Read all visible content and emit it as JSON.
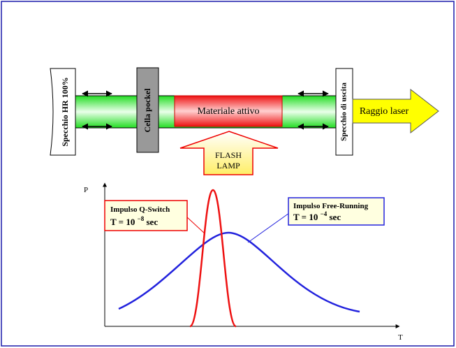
{
  "resonator": {
    "rear_mirror": "Specchio HR 100%",
    "pockels_cell": "Cella pockel",
    "active_medium": "Materiale attivo",
    "flash_lamp": [
      "FLASH",
      "LAMP"
    ],
    "output_mirror": "Specchio di uscita",
    "laser_beam": "Raggio laser"
  },
  "graph": {
    "y_axis_label": "P",
    "x_axis_label": "T",
    "q_switch": {
      "title": "Impulso Q-Switch",
      "prefix": "T = 10",
      "exponent": "−8",
      "suffix": "sec"
    },
    "free_running": {
      "title": "Impulso Free-Running",
      "prefix": "T = 10",
      "exponent": "−4",
      "suffix": "sec"
    }
  }
}
